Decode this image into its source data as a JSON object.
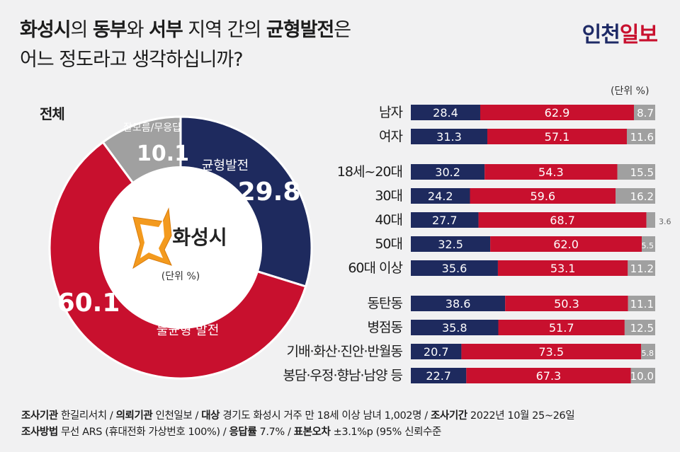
{
  "header": {
    "title_line1": [
      {
        "text": "화성시",
        "bold": true
      },
      {
        "text": "의 ",
        "bold": false
      },
      {
        "text": "동부",
        "bold": true
      },
      {
        "text": "와 ",
        "bold": false
      },
      {
        "text": "서부",
        "bold": true
      },
      {
        "text": " 지역 간의 ",
        "bold": false
      },
      {
        "text": "균형발전",
        "bold": true
      },
      {
        "text": "은",
        "bold": false
      }
    ],
    "title_line2": "어느 정도라고 생각하십니까?",
    "logo_part1": "인천",
    "logo_part2": "일보"
  },
  "overall_label": "전체",
  "unit_label": "(단위 %)",
  "pie_center": {
    "label": "화성시",
    "unit": "(단위 %)"
  },
  "colors": {
    "navy": "#1e2a5e",
    "red": "#c8102e",
    "gray": "#a0a0a0",
    "background": "#f1f1f2"
  },
  "chart_data": [
    {
      "type": "pie",
      "slices": [
        {
          "name": "균형발전",
          "value": 29.8,
          "color": "#1e2a5e"
        },
        {
          "name": "불균형 발전",
          "value": 60.1,
          "color": "#c8102e"
        },
        {
          "name": "잘모름/무응답",
          "value": 10.1,
          "color": "#a0a0a0"
        }
      ]
    },
    {
      "type": "bar",
      "stacked": true,
      "orientation": "horizontal",
      "series_colors": [
        "#1e2a5e",
        "#c8102e",
        "#a0a0a0"
      ],
      "groups": [
        {
          "rows": [
            {
              "label": "남자",
              "values": [
                28.4,
                62.9,
                8.7
              ]
            },
            {
              "label": "여자",
              "values": [
                31.3,
                57.1,
                11.6
              ]
            }
          ]
        },
        {
          "rows": [
            {
              "label": "18세~20대",
              "values": [
                30.2,
                54.3,
                15.5
              ]
            },
            {
              "label": "30대",
              "values": [
                24.2,
                59.6,
                16.2
              ]
            },
            {
              "label": "40대",
              "values": [
                27.7,
                68.7,
                3.6
              ]
            },
            {
              "label": "50대",
              "values": [
                32.5,
                62.0,
                5.5
              ]
            },
            {
              "label": "60대 이상",
              "values": [
                35.6,
                53.1,
                11.2
              ]
            }
          ]
        },
        {
          "rows": [
            {
              "label": "동탄동",
              "values": [
                38.6,
                50.3,
                11.1
              ]
            },
            {
              "label": "병점동",
              "values": [
                35.8,
                51.7,
                12.5
              ]
            },
            {
              "label": "기배·화산·진안·반월동",
              "values": [
                20.7,
                73.5,
                5.8
              ]
            },
            {
              "label": "봉담·우정·향남·남양 등",
              "values": [
                22.7,
                67.3,
                10.0
              ]
            }
          ]
        }
      ]
    }
  ],
  "footer": {
    "line1": [
      {
        "text": "조사기관",
        "bold": true
      },
      {
        "text": " 한길리서치 / ",
        "bold": false
      },
      {
        "text": "의뢰기관",
        "bold": true
      },
      {
        "text": " 인천일보 / ",
        "bold": false
      },
      {
        "text": "대상",
        "bold": true
      },
      {
        "text": " 경기도 화성시 거주 만 18세 이상 남녀 1,002명 / ",
        "bold": false
      },
      {
        "text": "조사기간",
        "bold": true
      },
      {
        "text": " 2022년 10월 25~26일",
        "bold": false
      }
    ],
    "line2": [
      {
        "text": "조사방법",
        "bold": true
      },
      {
        "text": " 무선 ARS (휴대전화 가상번호 100%) / ",
        "bold": false
      },
      {
        "text": "응답률",
        "bold": true
      },
      {
        "text": " 7.7% / ",
        "bold": false
      },
      {
        "text": "표본오차",
        "bold": true
      },
      {
        "text": " ±3.1%p (95% 신뢰수준",
        "bold": false
      }
    ]
  }
}
